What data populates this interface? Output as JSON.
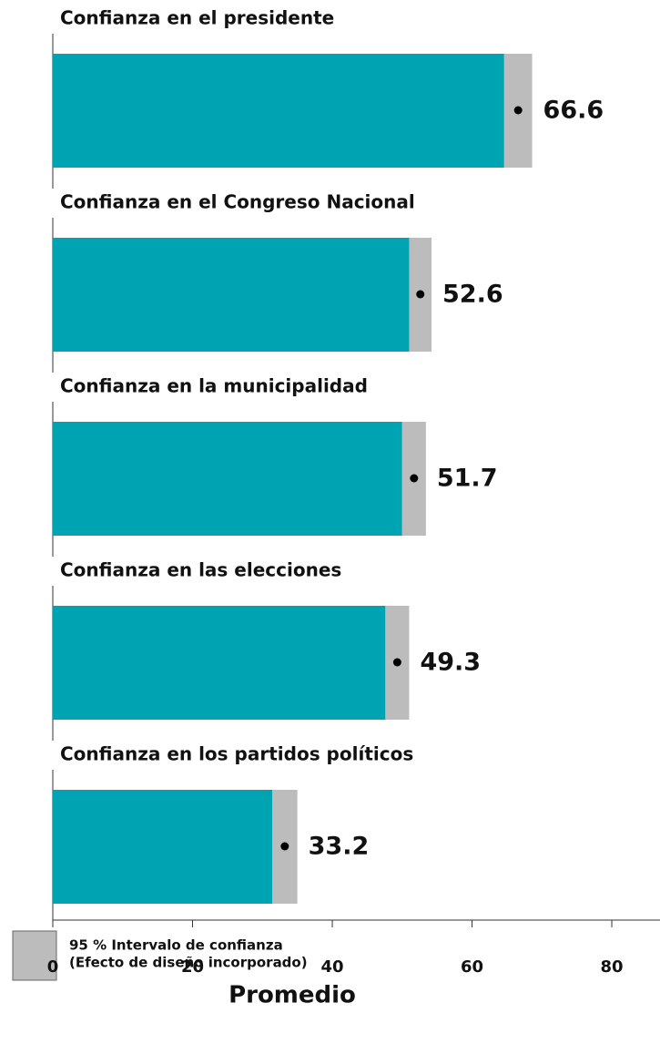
{
  "chart_data": {
    "type": "bar",
    "categories": [
      "Confianza en el presidente",
      "Confianza en el Congreso Nacional",
      "Confianza en la municipalidad",
      "Confianza en las elecciones",
      "Confianza en los partidos políticos"
    ],
    "values": [
      66.6,
      52.6,
      51.7,
      49.3,
      33.2
    ],
    "errors": [
      2.0,
      1.6,
      1.7,
      1.7,
      1.8
    ],
    "color": "#00a3b1",
    "error_color": "#bcbcbc",
    "xlabel": "Promedio",
    "xlim": [
      0,
      86.9
    ],
    "xticks": [
      0,
      20,
      40,
      60,
      80
    ],
    "legend": [
      "95 % Intervalo de confianza",
      "(Efecto de diseño incorporado)"
    ]
  }
}
